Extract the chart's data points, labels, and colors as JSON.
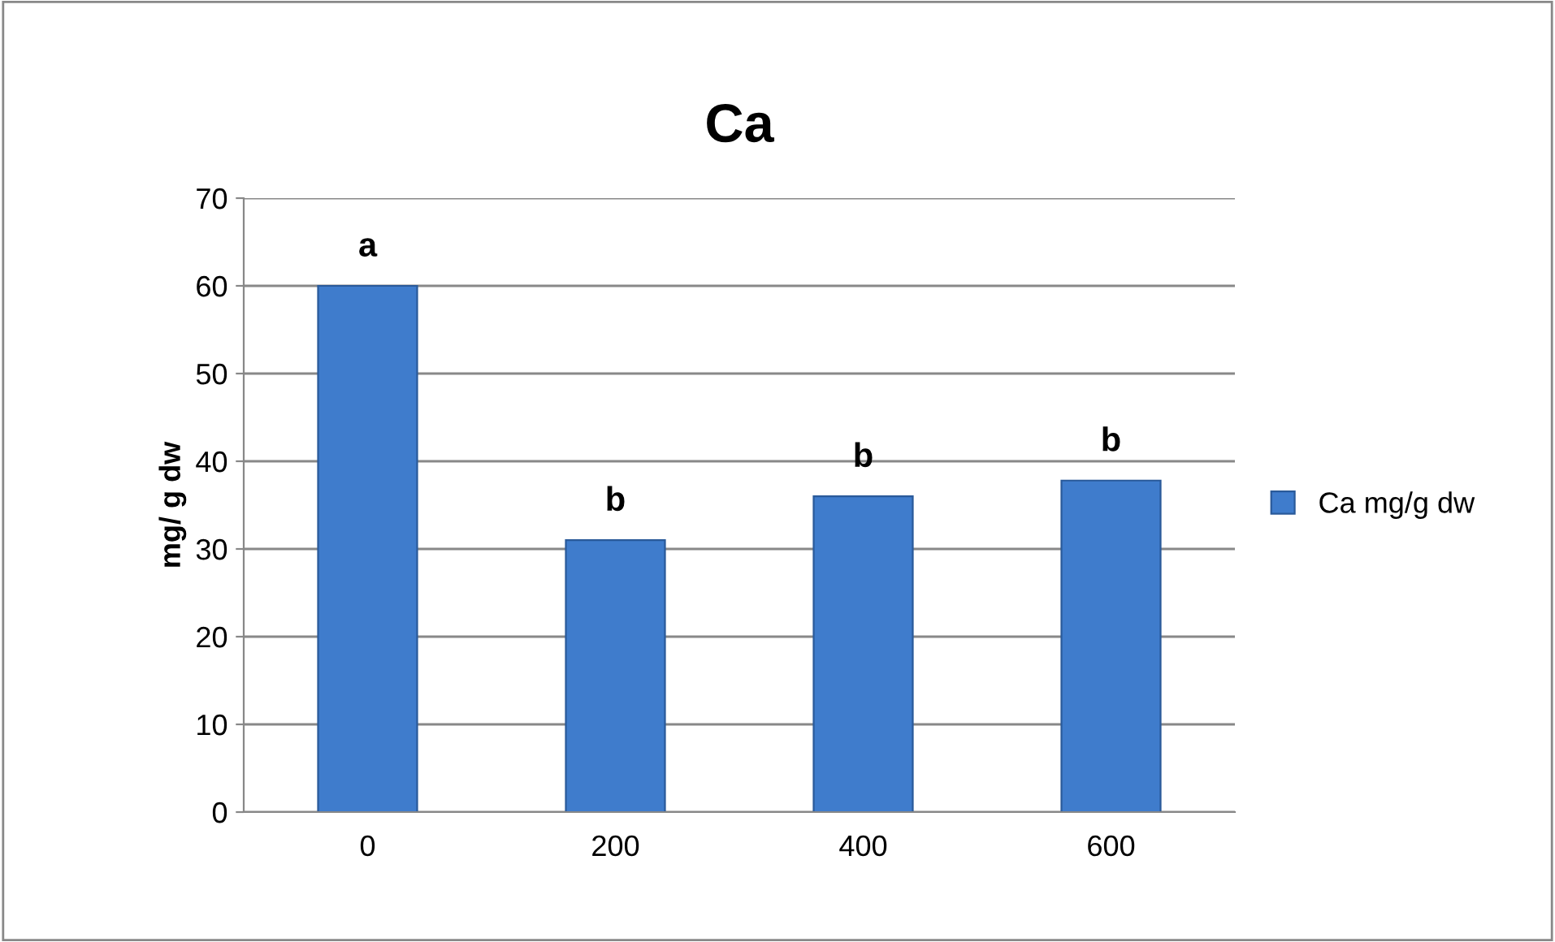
{
  "chart_data": {
    "type": "bar",
    "title": "Ca",
    "ylabel": "mg/ g dw",
    "categories": [
      "0",
      "200",
      "400",
      "600"
    ],
    "series": [
      {
        "name": "Ca mg/g dw",
        "color": "#3f7ccc",
        "values": [
          60,
          31,
          36,
          37.8
        ]
      }
    ],
    "ylim": [
      0,
      70
    ],
    "yticks": [
      0,
      10,
      20,
      30,
      40,
      50,
      60,
      70
    ],
    "grid": "y",
    "legend": "right",
    "annotations": [
      {
        "text": "a",
        "x": "0",
        "y": 60
      },
      {
        "text": "b",
        "x": "200",
        "y": 31
      },
      {
        "text": "b",
        "x": "400",
        "y": 36
      },
      {
        "text": "b",
        "x": "600",
        "y": 37.8
      }
    ]
  }
}
